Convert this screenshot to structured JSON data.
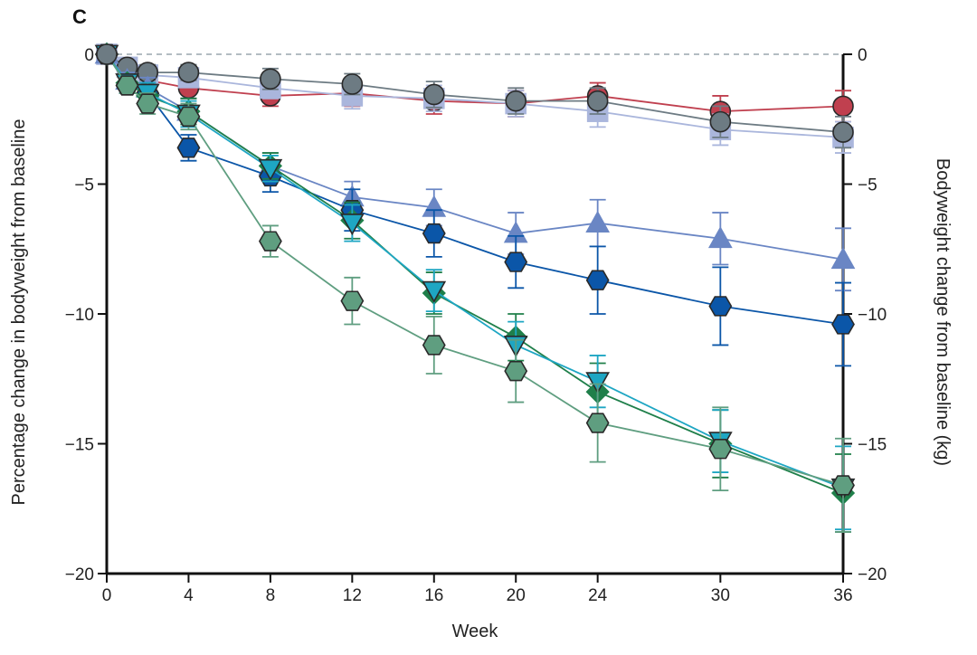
{
  "chart_data": {
    "type": "line",
    "panel_label": "C",
    "xlabel": "Week",
    "ylabel": "Percentage change in bodyweight from baseline",
    "ylabel_right": "Bodyweight change from baseline (kg)",
    "x_ticks": [
      0,
      4,
      8,
      12,
      16,
      20,
      24,
      30,
      36
    ],
    "x_tick_labels": [
      "0",
      "4",
      "8",
      "12",
      "16",
      "20",
      "24",
      "30",
      "36"
    ],
    "y_ticks": [
      0,
      -5,
      -10,
      -15,
      -20
    ],
    "y_tick_labels": [
      "0",
      "−5",
      "−10",
      "−15",
      "−20"
    ],
    "y_ticks_right": [
      0,
      -5,
      -10,
      -15,
      -20
    ],
    "y_tick_labels_right": [
      "0",
      "−5",
      "−10",
      "−15",
      "−20"
    ],
    "xlim": [
      0,
      36
    ],
    "ylim": [
      -20,
      0
    ],
    "reference_line": 0,
    "series": [
      {
        "color": "#c0404f",
        "marker": "circle",
        "x": [
          0,
          1,
          2,
          4,
          8,
          12,
          16,
          20,
          24,
          30,
          36
        ],
        "y": [
          0,
          -0.6,
          -1.0,
          -1.3,
          -1.6,
          -1.5,
          -1.8,
          -1.9,
          -1.6,
          -2.2,
          -2.0
        ],
        "err": [
          0,
          0.2,
          0.3,
          0.4,
          0.4,
          0.5,
          0.5,
          0.5,
          0.5,
          0.6,
          0.6
        ]
      },
      {
        "color": "#aab6dc",
        "marker": "square",
        "x": [
          0,
          1,
          2,
          4,
          8,
          12,
          16,
          20,
          24,
          30,
          36
        ],
        "y": [
          0,
          -0.5,
          -0.8,
          -0.9,
          -1.3,
          -1.6,
          -1.7,
          -1.9,
          -2.2,
          -2.9,
          -3.2
        ],
        "err": [
          0,
          0.2,
          0.3,
          0.3,
          0.4,
          0.5,
          0.5,
          0.5,
          0.6,
          0.6,
          0.6
        ]
      },
      {
        "color": "#6d7b83",
        "marker": "circle",
        "x": [
          0,
          1,
          2,
          4,
          8,
          12,
          16,
          20,
          24,
          30,
          36
        ],
        "y": [
          0,
          -0.5,
          -0.7,
          -0.7,
          -0.95,
          -1.15,
          -1.55,
          -1.8,
          -1.8,
          -2.6,
          -3.0
        ],
        "err": [
          0,
          0.2,
          0.3,
          0.3,
          0.4,
          0.4,
          0.5,
          0.5,
          0.5,
          0.6,
          0.6
        ]
      },
      {
        "color": "#6a86c4",
        "marker": "triangle-up",
        "x": [
          0,
          1,
          2,
          4,
          8,
          12,
          16,
          20,
          24,
          30,
          36
        ],
        "y": [
          0,
          -1.0,
          -1.3,
          -2.2,
          -4.3,
          -5.5,
          -5.9,
          -6.9,
          -6.5,
          -7.1,
          -7.9
        ],
        "err": [
          0,
          0.3,
          0.4,
          0.5,
          0.5,
          0.6,
          0.7,
          0.8,
          0.9,
          1.0,
          1.2
        ]
      },
      {
        "color": "#0b56a8",
        "marker": "hexagon",
        "x": [
          0,
          1,
          2,
          4,
          8,
          12,
          16,
          20,
          24,
          30,
          36
        ],
        "y": [
          0,
          -1.2,
          -1.5,
          -3.6,
          -4.7,
          -6.0,
          -6.9,
          -8.0,
          -8.7,
          -9.7,
          -10.4
        ],
        "err": [
          0,
          0.3,
          0.4,
          0.5,
          0.6,
          0.8,
          0.9,
          1.0,
          1.3,
          1.5,
          1.6
        ]
      },
      {
        "color": "#1f7f4a",
        "marker": "diamond",
        "x": [
          0,
          1,
          2,
          4,
          8,
          12,
          16,
          20,
          24,
          30,
          36
        ],
        "y": [
          0,
          -1.1,
          -1.6,
          -2.2,
          -4.3,
          -6.4,
          -9.2,
          -10.9,
          -13.0,
          -15.0,
          -16.9
        ],
        "err": [
          0,
          0.3,
          0.4,
          0.5,
          0.5,
          0.7,
          0.8,
          0.9,
          1.1,
          1.3,
          1.5
        ]
      },
      {
        "color": "#1ea6c3",
        "marker": "triangle-down",
        "x": [
          0,
          1,
          2,
          4,
          8,
          12,
          16,
          20,
          24,
          30,
          36
        ],
        "y": [
          0,
          -1.1,
          -1.5,
          -2.3,
          -4.4,
          -6.5,
          -9.1,
          -11.2,
          -12.6,
          -14.9,
          -16.7
        ],
        "err": [
          0,
          0.3,
          0.4,
          0.5,
          0.5,
          0.7,
          0.8,
          0.9,
          1.0,
          1.2,
          1.6
        ]
      },
      {
        "color": "#5f9e80",
        "marker": "hexagon",
        "x": [
          0,
          1,
          2,
          4,
          8,
          12,
          16,
          20,
          24,
          30,
          36
        ],
        "y": [
          0,
          -1.2,
          -1.9,
          -2.4,
          -7.2,
          -9.5,
          -11.2,
          -12.2,
          -14.2,
          -15.2,
          -16.6
        ],
        "err": [
          0,
          0.3,
          0.4,
          0.5,
          0.6,
          0.9,
          1.1,
          1.2,
          1.5,
          1.6,
          1.8
        ]
      }
    ]
  }
}
